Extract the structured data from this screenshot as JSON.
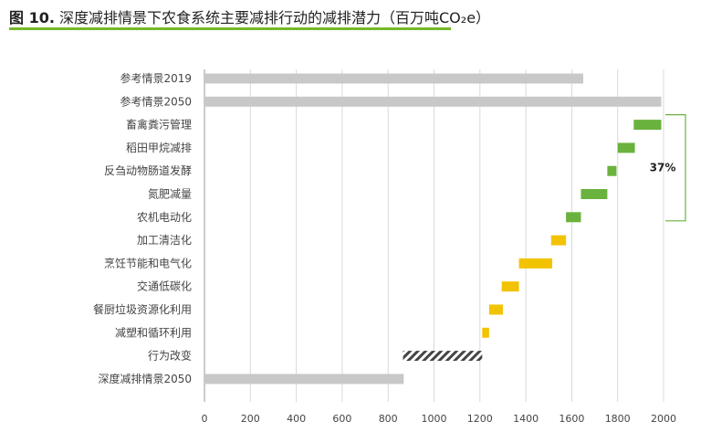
{
  "header": {
    "fig_label": "图 10.",
    "title_text": " 深度减排情景下农食系统主要减排行动的减排潜力（百万吨CO₂e）"
  },
  "colors": {
    "baseline": "#c8c8c8",
    "agri": "#6ab23e",
    "food_chain": "#f2c300",
    "behavior_hatch": "#444444",
    "accent_rule": "#77b82a"
  },
  "chart_data": {
    "type": "bar",
    "orientation": "horizontal",
    "subtype": "waterfall",
    "title": "深度减排情景下农食系统主要减排行动的减排潜力（百万吨CO₂e）",
    "xlim": [
      0,
      2000
    ],
    "x_ticks": [
      0,
      200,
      400,
      600,
      800,
      1000,
      1200,
      1400,
      1600,
      1800,
      2000
    ],
    "grid": "vertical",
    "bars": [
      {
        "label": "参考情景2019",
        "start": 0,
        "end": 1650,
        "group": "baseline"
      },
      {
        "label": "参考情景2050",
        "start": 0,
        "end": 1990,
        "group": "baseline"
      },
      {
        "label": "畜禽粪污管理",
        "start": 1870,
        "end": 1990,
        "group": "agri"
      },
      {
        "label": "稻田甲烷减排",
        "start": 1800,
        "end": 1875,
        "group": "agri"
      },
      {
        "label": "反刍动物肠道发酵",
        "start": 1755,
        "end": 1795,
        "group": "agri"
      },
      {
        "label": "氮肥减量",
        "start": 1640,
        "end": 1755,
        "group": "agri"
      },
      {
        "label": "农机电动化",
        "start": 1575,
        "end": 1640,
        "group": "agri"
      },
      {
        "label": "加工清洁化",
        "start": 1510,
        "end": 1575,
        "group": "food_chain"
      },
      {
        "label": "烹饪节能和电气化",
        "start": 1370,
        "end": 1515,
        "group": "food_chain"
      },
      {
        "label": "交通低碳化",
        "start": 1295,
        "end": 1370,
        "group": "food_chain"
      },
      {
        "label": "餐厨垃圾资源化利用",
        "start": 1240,
        "end": 1300,
        "group": "food_chain"
      },
      {
        "label": "减塑和循环利用",
        "start": 1210,
        "end": 1240,
        "group": "food_chain"
      },
      {
        "label": "行为改变",
        "start": 865,
        "end": 1210,
        "group": "behavior"
      },
      {
        "label": "深度减排情景2050",
        "start": 0,
        "end": 868,
        "group": "baseline"
      }
    ],
    "annotation": {
      "text": "37%",
      "from_row": 2,
      "to_row": 6
    }
  }
}
